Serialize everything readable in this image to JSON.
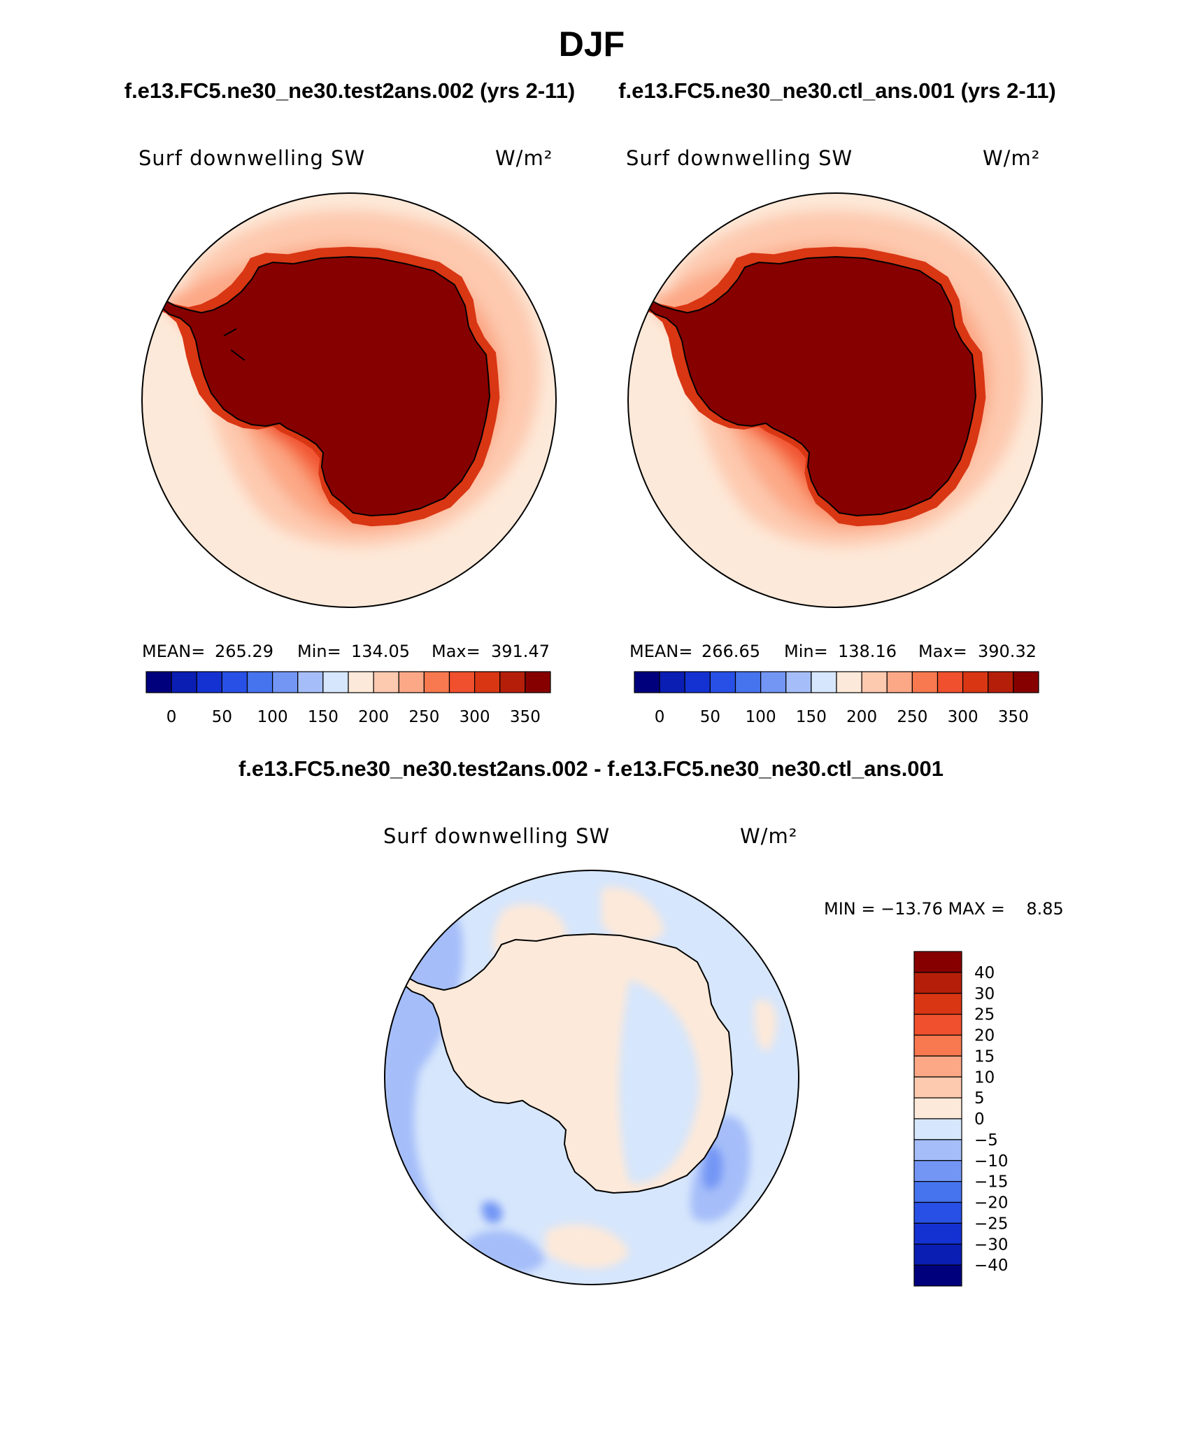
{
  "figure": {
    "season": "DJF",
    "case_test": "f.e13.FC5.ne30_ne30.test2ans.002 (yrs 2-11)",
    "case_ctl": "f.e13.FC5.ne30_ne30.ctl_ans.001 (yrs 2-11)",
    "diff_title": "f.e13.FC5.ne30_ne30.test2ans.002 - f.e13.FC5.ne30_ne30.ctl_ans.001"
  },
  "panels": [
    {
      "variable": "Surf downwelling SW",
      "units": "W/m²",
      "stats": {
        "mean_label": "MEAN=",
        "mean": "265.29",
        "min_label": "Min=",
        "min": "134.05",
        "max_label": "Max=",
        "max": "391.47"
      }
    },
    {
      "variable": "Surf downwelling SW",
      "units": "W/m²",
      "stats": {
        "mean_label": "MEAN=",
        "mean": "266.65",
        "min_label": "Min=",
        "min": "138.16",
        "max_label": "Max=",
        "max": "390.32"
      }
    },
    {
      "variable": "Surf downwelling SW",
      "units": "W/m²",
      "stats_text": "MIN = −13.76 MAX =    8.85"
    }
  ],
  "chart_data": [
    {
      "type": "map",
      "projection": "south-polar-stereographic",
      "field": "Surf downwelling SW",
      "colorbar": {
        "orientation": "horizontal",
        "colors": [
          "#00007d",
          "#0a1eb4",
          "#1432d2",
          "#2850e6",
          "#4673ee",
          "#7396f5",
          "#a5bef9",
          "#d6e6fc",
          "#fde9d9",
          "#fdc9af",
          "#fca886",
          "#f8794f",
          "#f0502d",
          "#d93614",
          "#b51f09",
          "#870000"
        ],
        "tick_labels": [
          "0",
          "50",
          "100",
          "150",
          "200",
          "250",
          "300",
          "350"
        ]
      }
    },
    {
      "type": "map",
      "projection": "south-polar-stereographic",
      "field": "Surf downwelling SW",
      "colorbar": {
        "orientation": "horizontal",
        "colors": [
          "#00007d",
          "#0a1eb4",
          "#1432d2",
          "#2850e6",
          "#4673ee",
          "#7396f5",
          "#a5bef9",
          "#d6e6fc",
          "#fde9d9",
          "#fdc9af",
          "#fca886",
          "#f8794f",
          "#f0502d",
          "#d93614",
          "#b51f09",
          "#870000"
        ],
        "tick_labels": [
          "0",
          "50",
          "100",
          "150",
          "200",
          "250",
          "300",
          "350"
        ]
      }
    },
    {
      "type": "map",
      "projection": "south-polar-stereographic",
      "field": "Surf downwelling SW difference",
      "colorbar": {
        "orientation": "vertical",
        "colors": [
          "#870000",
          "#b51f09",
          "#d93614",
          "#f0502d",
          "#f8794f",
          "#fca886",
          "#fdc9af",
          "#fde9d9",
          "#d6e6fc",
          "#a5bef9",
          "#7396f5",
          "#4673ee",
          "#2850e6",
          "#1432d2",
          "#0a1eb4",
          "#00007d"
        ],
        "tick_labels": [
          "40",
          "30",
          "25",
          "20",
          "15",
          "10",
          "5",
          "0",
          "−5",
          "−10",
          "−15",
          "−20",
          "−25",
          "−30",
          "−40"
        ]
      }
    }
  ]
}
